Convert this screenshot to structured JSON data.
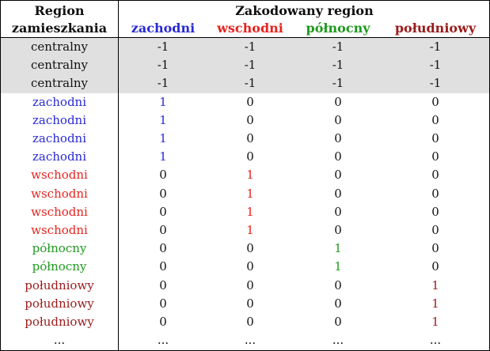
{
  "header": {
    "left_line1": "Region",
    "left_line2": "zamieszkania",
    "right_title": "Zakodowany region",
    "columns": [
      "zachodni",
      "wschodni",
      "północny",
      "południowy"
    ]
  },
  "colors": {
    "zachodni": "#2a2ad6",
    "wschodni": "#e8231f",
    "północny": "#1f9a1f",
    "południowy": "#9b1b1b",
    "shade": "#e0e0e0"
  },
  "rows": [
    {
      "region": "centralny",
      "values": [
        "-1",
        "-1",
        "-1",
        "-1"
      ]
    },
    {
      "region": "centralny",
      "values": [
        "-1",
        "-1",
        "-1",
        "-1"
      ]
    },
    {
      "region": "centralny",
      "values": [
        "-1",
        "-1",
        "-1",
        "-1"
      ]
    },
    {
      "region": "zachodni",
      "values": [
        "1",
        "0",
        "0",
        "0"
      ]
    },
    {
      "region": "zachodni",
      "values": [
        "1",
        "0",
        "0",
        "0"
      ]
    },
    {
      "region": "zachodni",
      "values": [
        "1",
        "0",
        "0",
        "0"
      ]
    },
    {
      "region": "zachodni",
      "values": [
        "1",
        "0",
        "0",
        "0"
      ]
    },
    {
      "region": "wschodni",
      "values": [
        "0",
        "1",
        "0",
        "0"
      ]
    },
    {
      "region": "wschodni",
      "values": [
        "0",
        "1",
        "0",
        "0"
      ]
    },
    {
      "region": "wschodni",
      "values": [
        "0",
        "1",
        "0",
        "0"
      ]
    },
    {
      "region": "wschodni",
      "values": [
        "0",
        "1",
        "0",
        "0"
      ]
    },
    {
      "region": "północny",
      "values": [
        "0",
        "0",
        "1",
        "0"
      ]
    },
    {
      "region": "północny",
      "values": [
        "0",
        "0",
        "1",
        "0"
      ]
    },
    {
      "region": "południowy",
      "values": [
        "0",
        "0",
        "0",
        "1"
      ]
    },
    {
      "region": "południowy",
      "values": [
        "0",
        "0",
        "0",
        "1"
      ]
    },
    {
      "region": "południowy",
      "values": [
        "0",
        "0",
        "0",
        "1"
      ]
    },
    {
      "region": "...",
      "values": [
        "...",
        "...",
        "...",
        "..."
      ]
    }
  ]
}
